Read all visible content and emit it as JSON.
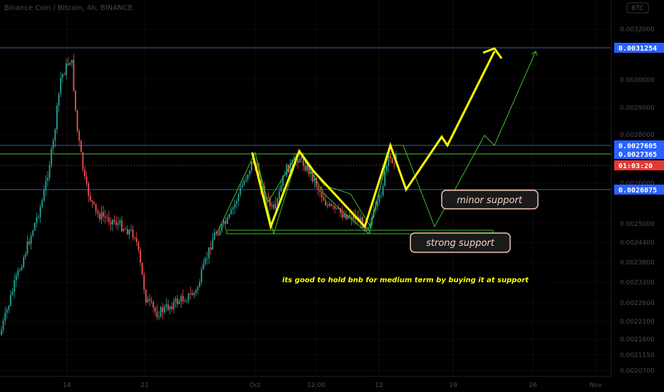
{
  "header": {
    "symbol_title": "Binance Coin / Bitcoin, 4h, BINANCE",
    "currency": "BTC"
  },
  "chart_data": {
    "type": "candlestick",
    "title": "Binance Coin / Bitcoin, 4h, BINANCE",
    "ylim": [
      0.002,
      0.0033
    ],
    "y_ticks": [
      "0.0032000",
      "0.0031250",
      "0.0030000",
      "0.0029000",
      "0.0028000",
      "0.0027365",
      "0.0026000",
      "0.0025000",
      "0.0024400",
      "0.0023800",
      "0.0023200",
      "0.0022600",
      "0.0022100",
      "0.0021600",
      "0.0021150",
      "0.0020700"
    ],
    "x_ticks": [
      "14",
      "21",
      "Oct",
      "12:00",
      "12",
      "19",
      "26",
      "Nov"
    ],
    "price_badges": [
      {
        "label": "0.0031254",
        "value": 0.0031254,
        "kind": "level"
      },
      {
        "label": "0.0027605",
        "value": 0.0027605,
        "kind": "level"
      },
      {
        "label": "0.0027365",
        "value": 0.0027365,
        "kind": "level"
      },
      {
        "label": "01:03:20",
        "value": 0.00268,
        "kind": "countdown"
      },
      {
        "label": "0.0026075",
        "value": 0.0026075,
        "kind": "level"
      }
    ],
    "horizontal_lines": [
      {
        "value": 0.0031254,
        "color": "#3e5f9e"
      },
      {
        "value": 0.0027605,
        "color": "#3e5f9e"
      },
      {
        "value": 0.0027365,
        "color": "#4fbf3a"
      },
      {
        "value": 0.0026075,
        "color": "#3e5f9e"
      }
    ],
    "annotations": [
      {
        "text": "minor support"
      },
      {
        "text": "strong support"
      },
      {
        "text": "its good to hold bnb for medium term by buying it at support"
      }
    ],
    "colors": {
      "up": "#26a69a",
      "down": "#ef5350",
      "pattern_yellow": "#ffff00",
      "pattern_green": "#3fbf2a",
      "level_blue": "#3e5f9e",
      "badge_blue": "#2962ff",
      "badge_red": "#e53935"
    }
  }
}
